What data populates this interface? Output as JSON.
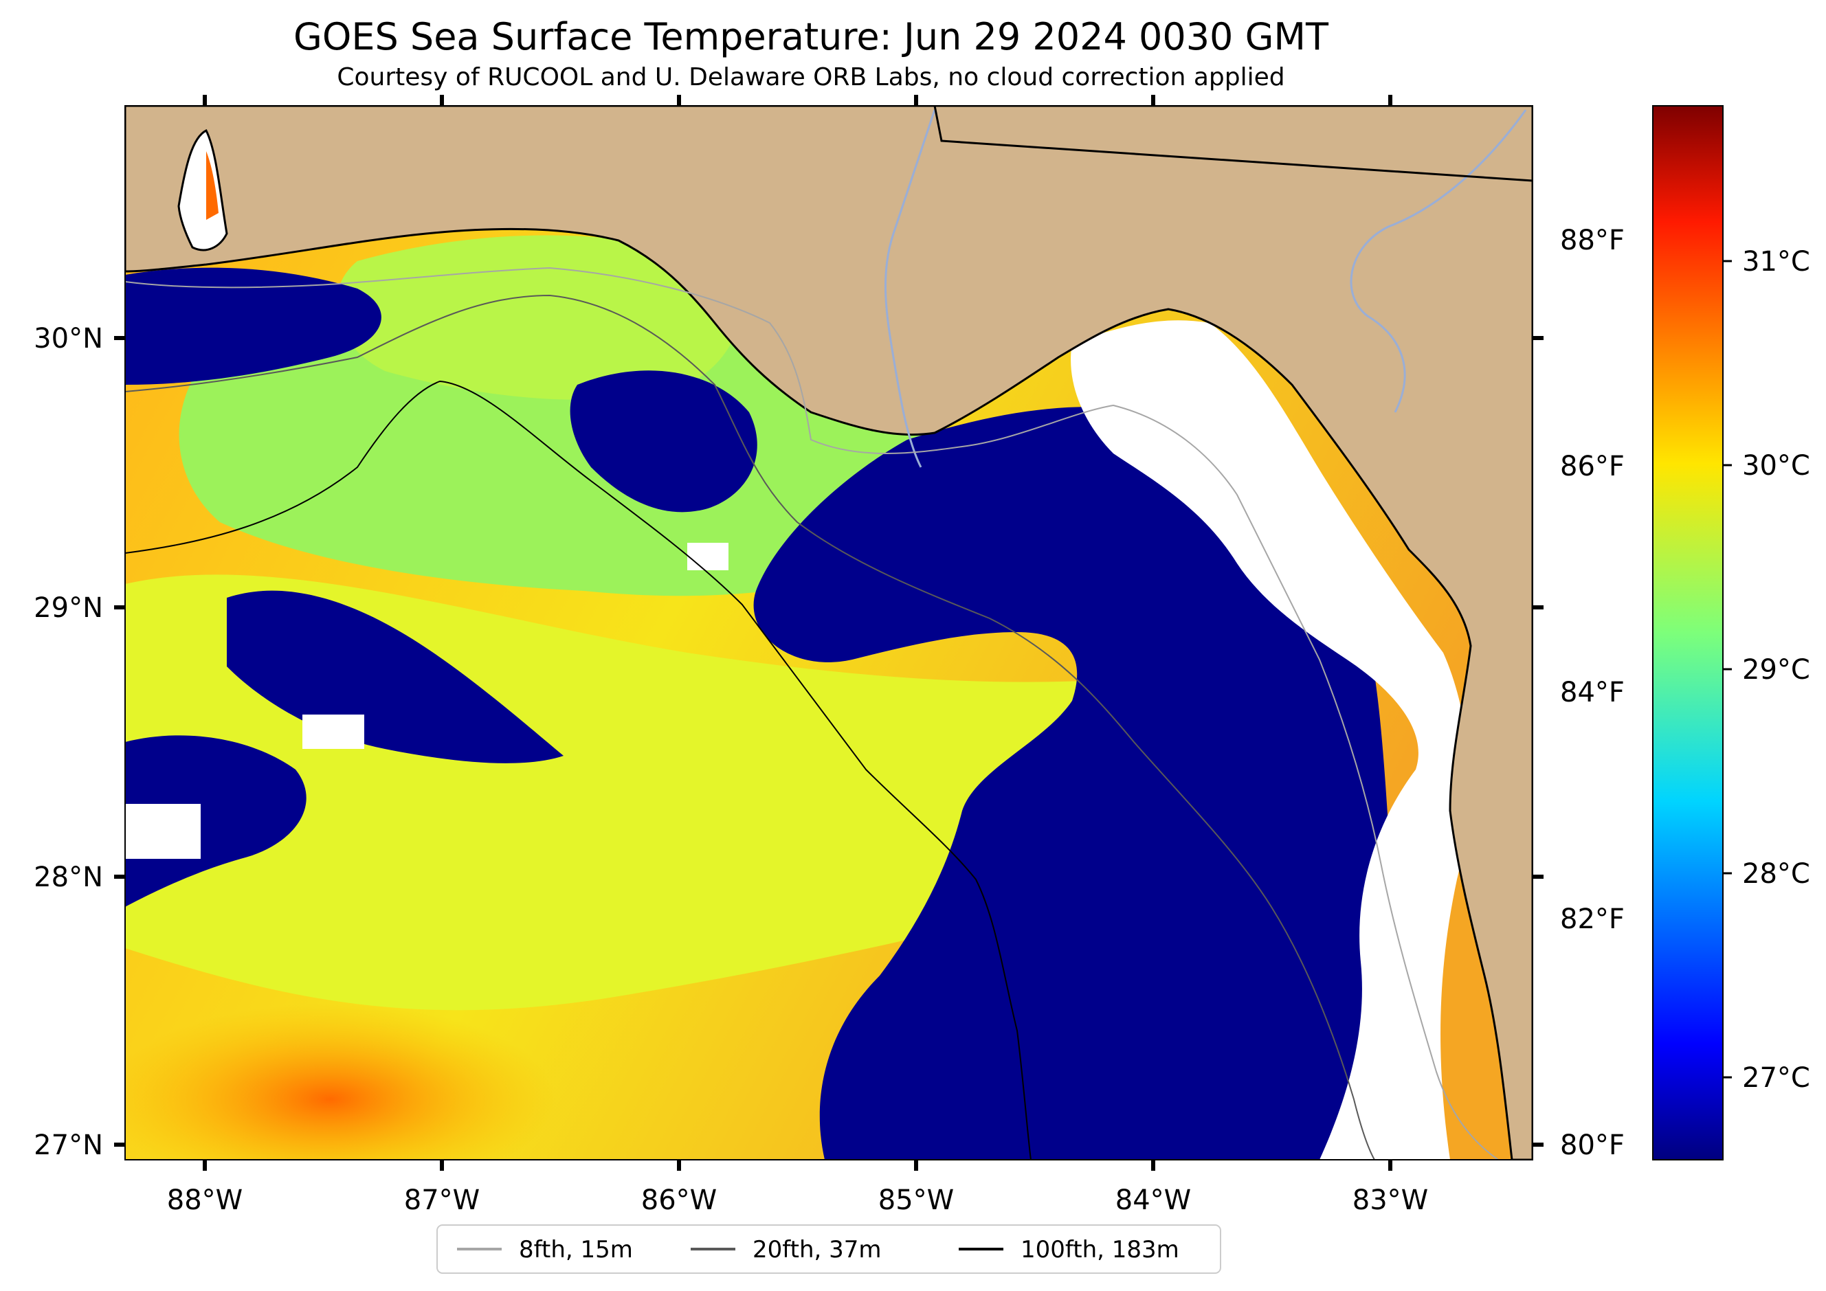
{
  "title": "GOES Sea Surface Temperature: Jun 29 2024 0030 GMT",
  "subtitle": "Courtesy of RUCOOL and U. Delaware ORB Labs, no cloud correction applied",
  "map": {
    "lon_labels": [
      "88°W",
      "87°W",
      "86°W",
      "85°W",
      "84°W",
      "83°W"
    ],
    "lat_labels": [
      "30°N",
      "29°N",
      "28°N",
      "27°N"
    ],
    "fahrenheit_labels": [
      "88°F",
      "86°F",
      "84°F",
      "82°F",
      "80°F"
    ],
    "colors": {
      "land": "#d2b48c",
      "cloud": "#ffffff",
      "cold": "#00008b",
      "coast": "#000000",
      "rivers": "#9aaed6"
    }
  },
  "colorbar": {
    "celsius_labels": [
      "31°C",
      "30°C",
      "29°C",
      "28°C",
      "27°C"
    ],
    "colormap": "jet"
  },
  "legend": {
    "items": [
      {
        "label": "8fth, 15m",
        "color": "#a6a6a6"
      },
      {
        "label": "20fth, 37m",
        "color": "#595959"
      },
      {
        "label": "100fth, 183m",
        "color": "#000000"
      }
    ]
  }
}
